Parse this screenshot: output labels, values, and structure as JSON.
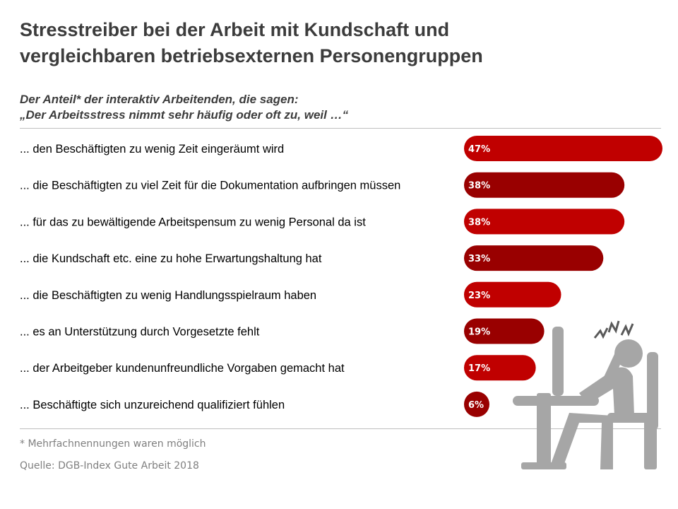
{
  "title_lines": [
    "Stresstreiber bei der Arbeit mit Kundschaft und",
    "vergleichbaren betriebsexternen Personengruppen"
  ],
  "subtitle_lines": [
    "Der Anteil* der interaktiv Arbeitenden, die sagen:",
    "„Der Arbeitsstress nimmt sehr häufig oder oft zu, weil …“"
  ],
  "footnote": "* Mehrfachnennungen waren möglich",
  "source": "Quelle: DGB-Index Gute Arbeit 2018",
  "colors": {
    "bar_bright": "#c00000",
    "bar_dark": "#990000",
    "illustration": "#a6a6a6",
    "rule": "#bfbfbf"
  },
  "illustration_icon": "stressed-person-at-desk-icon",
  "chart_data": {
    "type": "bar",
    "orientation": "horizontal",
    "categories": [
      "... den Beschäftigten zu wenig Zeit eingeräumt wird",
      "... die Beschäftigten zu viel Zeit für die Dokumentation aufbringen müssen",
      "... für das zu bewältigende Arbeitspensum zu wenig Personal da ist",
      "... die Kundschaft etc. eine zu hohe Erwartungshaltung hat",
      "... die Beschäftigten zu wenig Handlungsspielraum haben",
      "... es an Unterstützung durch Vorgesetzte fehlt",
      "... der Arbeitgeber kundenunfreundliche Vorgaben gemacht hat",
      "... Beschäftigte sich unzureichend qualifiziert fühlen"
    ],
    "values": [
      47,
      38,
      38,
      33,
      23,
      19,
      17,
      6
    ],
    "value_labels": [
      "47%",
      "38%",
      "38%",
      "33%",
      "23%",
      "19%",
      "17%",
      "6%"
    ],
    "unit": "%",
    "xlim": [
      0,
      47
    ],
    "grid": false,
    "legend": "none"
  }
}
